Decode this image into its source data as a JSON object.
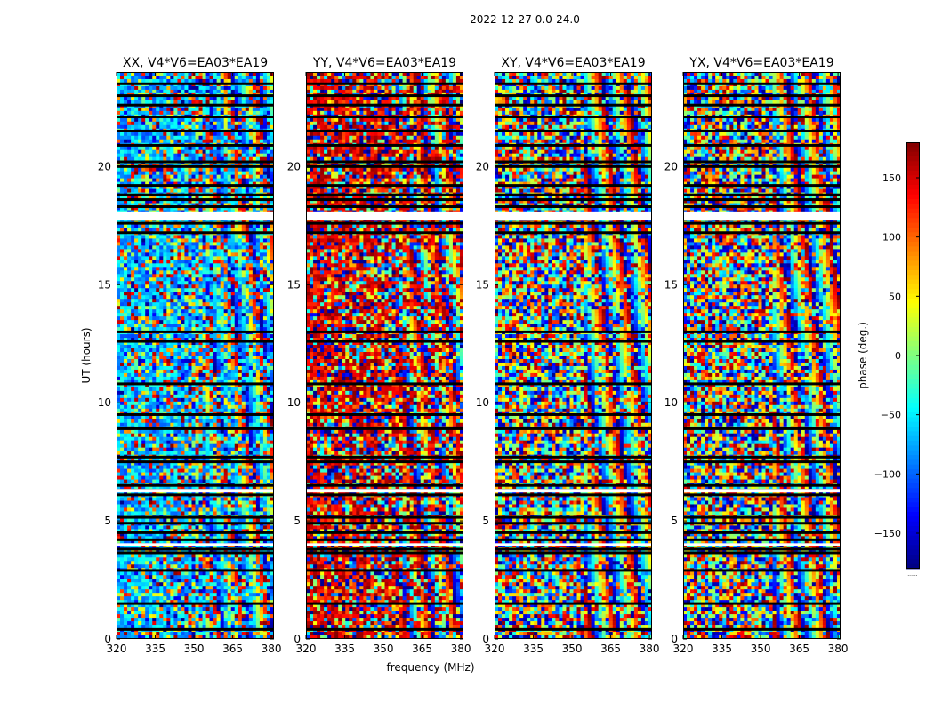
{
  "figure": {
    "suptitle": "2022-12-27 0.0-24.0",
    "xlabel": "frequency (MHz)",
    "ylabel": "UT (hours)"
  },
  "chart_data": {
    "type": "heatmap",
    "title": "2022-12-27 0.0-24.0",
    "xlabel": "frequency (MHz)",
    "ylabel": "UT (hours)",
    "xlim": [
      320,
      381
    ],
    "ylim": [
      0,
      24
    ],
    "x_ticks": [
      320,
      335,
      350,
      365,
      380
    ],
    "y_ticks": [
      0,
      5,
      10,
      15,
      20
    ],
    "colormap": "jet",
    "colorbar": {
      "label": "phase (deg.)",
      "range": [
        -180,
        180
      ],
      "ticks": [
        150,
        100,
        50,
        0,
        -50,
        -100,
        -150
      ],
      "tick_labels": [
        "150",
        "100",
        "50",
        "0",
        "−50",
        "−100",
        "−150"
      ],
      "bottom_label": "......"
    },
    "panels": [
      {
        "title": "XX, V4*V6=EA03*EA19",
        "baseline": "V4*V6=EA03*EA19",
        "pol": "XX",
        "bias_deg": -70
      },
      {
        "title": "YY, V4*V6=EA03*EA19",
        "baseline": "V4*V6=EA03*EA19",
        "pol": "YY",
        "bias_deg": 150
      },
      {
        "title": "XY, V4*V6=EA03*EA19",
        "baseline": "V4*V6=EA03*EA19",
        "pol": "XY",
        "bias_deg": null
      },
      {
        "title": "YX, V4*V6=EA03*EA19",
        "baseline": "V4*V6=EA03*EA19",
        "pol": "YX",
        "bias_deg": null
      }
    ],
    "flagged_ut_hours": [
      0.4,
      1.5,
      2.9,
      3.65,
      3.8,
      4.2,
      4.5,
      4.9,
      5.15,
      6.1,
      6.3,
      6.5,
      7.5,
      7.7,
      8.9,
      9.5,
      10.8,
      12.6,
      13.0,
      17.2,
      17.6,
      17.9,
      18.3,
      18.6,
      18.8,
      19.2,
      20.0,
      20.2,
      20.9,
      21.5,
      22.1,
      22.6,
      23.0,
      23.5
    ],
    "flagged_bands_ut_hours": [
      [
        17.75,
        18.1
      ],
      [
        6.2,
        6.35
      ],
      [
        3.95,
        4.05
      ]
    ]
  }
}
